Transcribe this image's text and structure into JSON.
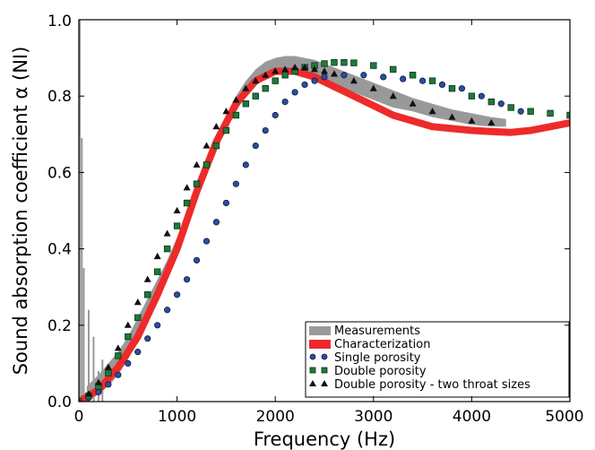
{
  "chart_data": {
    "type": "scatter",
    "xlabel": "Frequency (Hz)",
    "ylabel": "Sound absorption coefficient α (NI)",
    "xlim": [
      0,
      5000
    ],
    "ylim": [
      0.0,
      1.0
    ],
    "x_ticks": [
      "0",
      "1000",
      "2000",
      "3000",
      "4000",
      "5000"
    ],
    "y_ticks": [
      "0.0",
      "0.2",
      "0.4",
      "0.6",
      "0.8",
      "1.0"
    ],
    "grid": false,
    "legend_position": "lower-right",
    "colors": {
      "measurements": "#999999",
      "characterization": "#ee2a2a",
      "single": "#2b4f9c",
      "double": "#1e7a3a",
      "two_throat": "#111111"
    },
    "series": [
      {
        "name": "Measurements",
        "style": "band",
        "x": [
          80,
          200,
          300,
          400,
          500,
          600,
          700,
          800,
          900,
          1000,
          1100,
          1200,
          1300,
          1400,
          1500,
          1600,
          1700,
          1800,
          1900,
          2000,
          2100,
          2200,
          2300,
          2400,
          2500,
          2600,
          2700,
          2800,
          2900,
          3000,
          3200,
          3400,
          3600,
          3800,
          4000,
          4200,
          4350
        ],
        "lower": [
          0.0,
          0.02,
          0.04,
          0.07,
          0.11,
          0.16,
          0.21,
          0.27,
          0.33,
          0.39,
          0.46,
          0.53,
          0.6,
          0.66,
          0.71,
          0.76,
          0.8,
          0.83,
          0.85,
          0.86,
          0.865,
          0.865,
          0.86,
          0.85,
          0.84,
          0.83,
          0.82,
          0.81,
          0.8,
          0.79,
          0.77,
          0.76,
          0.745,
          0.735,
          0.725,
          0.72,
          0.72
        ],
        "upper": [
          0.04,
          0.07,
          0.1,
          0.13,
          0.17,
          0.22,
          0.27,
          0.32,
          0.37,
          0.43,
          0.5,
          0.57,
          0.64,
          0.7,
          0.75,
          0.8,
          0.84,
          0.87,
          0.89,
          0.9,
          0.905,
          0.905,
          0.9,
          0.895,
          0.885,
          0.875,
          0.865,
          0.855,
          0.845,
          0.835,
          0.815,
          0.795,
          0.78,
          0.765,
          0.755,
          0.745,
          0.74
        ],
        "spikes": [
          [
            10,
            1.0
          ],
          [
            30,
            0.69
          ],
          [
            50,
            0.35
          ],
          [
            100,
            0.24
          ],
          [
            150,
            0.17
          ],
          [
            200,
            0.08
          ],
          [
            240,
            0.11
          ]
        ]
      },
      {
        "name": "Characterization",
        "style": "line",
        "x": [
          0,
          200,
          400,
          600,
          800,
          1000,
          1200,
          1400,
          1600,
          1800,
          2000,
          2200,
          2400,
          2600,
          2800,
          3000,
          3200,
          3400,
          3600,
          3800,
          4000,
          4200,
          4400,
          4600,
          4800,
          5000
        ],
        "y": [
          0.0,
          0.03,
          0.09,
          0.17,
          0.28,
          0.4,
          0.55,
          0.68,
          0.78,
          0.84,
          0.865,
          0.865,
          0.85,
          0.825,
          0.8,
          0.775,
          0.75,
          0.735,
          0.72,
          0.715,
          0.71,
          0.707,
          0.705,
          0.71,
          0.72,
          0.73
        ]
      },
      {
        "name": "Single porosity",
        "style": "circle",
        "x": [
          0,
          100,
          200,
          300,
          400,
          500,
          600,
          700,
          800,
          900,
          1000,
          1100,
          1200,
          1300,
          1400,
          1500,
          1600,
          1700,
          1800,
          1900,
          2000,
          2100,
          2200,
          2300,
          2400,
          2500,
          2700,
          2900,
          3100,
          3300,
          3500,
          3700,
          3900,
          4100,
          4300,
          4500
        ],
        "y": [
          0.0,
          0.01,
          0.025,
          0.045,
          0.07,
          0.1,
          0.13,
          0.165,
          0.2,
          0.24,
          0.28,
          0.32,
          0.37,
          0.42,
          0.47,
          0.52,
          0.57,
          0.62,
          0.67,
          0.71,
          0.75,
          0.785,
          0.81,
          0.83,
          0.84,
          0.85,
          0.855,
          0.855,
          0.85,
          0.845,
          0.84,
          0.83,
          0.82,
          0.8,
          0.78,
          0.76
        ]
      },
      {
        "name": "Double porosity",
        "style": "square",
        "x": [
          0,
          100,
          200,
          300,
          400,
          500,
          600,
          700,
          800,
          900,
          1000,
          1100,
          1200,
          1300,
          1400,
          1500,
          1600,
          1700,
          1800,
          1900,
          2000,
          2100,
          2200,
          2300,
          2400,
          2500,
          2600,
          2700,
          2800,
          3000,
          3200,
          3400,
          3600,
          3800,
          4000,
          4200,
          4400,
          4600,
          4800,
          5000
        ],
        "y": [
          0.0,
          0.015,
          0.04,
          0.075,
          0.12,
          0.17,
          0.22,
          0.28,
          0.34,
          0.4,
          0.46,
          0.52,
          0.57,
          0.62,
          0.67,
          0.71,
          0.75,
          0.78,
          0.8,
          0.82,
          0.84,
          0.855,
          0.865,
          0.875,
          0.88,
          0.885,
          0.888,
          0.888,
          0.887,
          0.88,
          0.87,
          0.855,
          0.84,
          0.82,
          0.8,
          0.785,
          0.77,
          0.76,
          0.755,
          0.75
        ]
      },
      {
        "name": "Double porosity - two throat sizes",
        "style": "triangle",
        "x": [
          0,
          100,
          200,
          300,
          400,
          500,
          600,
          700,
          800,
          900,
          1000,
          1100,
          1200,
          1300,
          1400,
          1500,
          1600,
          1700,
          1800,
          1900,
          2000,
          2100,
          2200,
          2300,
          2400,
          2500,
          2600,
          2800,
          3000,
          3200,
          3400,
          3600,
          3800,
          4000,
          4200
        ],
        "y": [
          0.0,
          0.02,
          0.05,
          0.09,
          0.14,
          0.2,
          0.26,
          0.32,
          0.38,
          0.44,
          0.5,
          0.56,
          0.62,
          0.67,
          0.72,
          0.76,
          0.79,
          0.82,
          0.84,
          0.855,
          0.865,
          0.87,
          0.875,
          0.875,
          0.87,
          0.865,
          0.858,
          0.84,
          0.82,
          0.8,
          0.78,
          0.76,
          0.745,
          0.735,
          0.73
        ]
      }
    ]
  }
}
